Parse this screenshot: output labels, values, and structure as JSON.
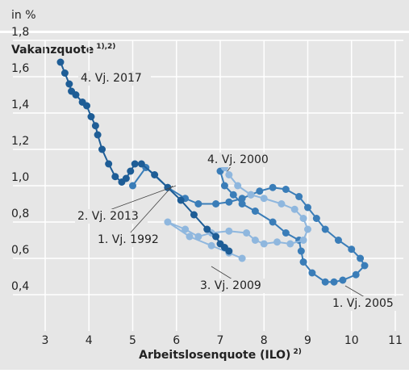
{
  "header": "in %",
  "chart_data": {
    "type": "line",
    "y_label": "Vakanzquote",
    "y_label_note": "1),2)",
    "x_label": "Arbeitslosenquote (ILO)",
    "x_label_note": "2)",
    "xlim": [
      3,
      11
    ],
    "xticks": [
      3,
      4,
      5,
      6,
      7,
      8,
      9,
      10,
      11
    ],
    "ylim": [
      0.2,
      1.8
    ],
    "yticks": [
      {
        "value": 0.4,
        "label": "0,4"
      },
      {
        "value": 0.6,
        "label": "0,6"
      },
      {
        "value": 0.8,
        "label": "0,8"
      },
      {
        "value": 1.0,
        "label": "1,0"
      },
      {
        "value": 1.2,
        "label": "1,2"
      },
      {
        "value": 1.4,
        "label": "1,4"
      },
      {
        "value": 1.6,
        "label": "1,6"
      },
      {
        "value": 1.8,
        "label": "1,8"
      }
    ],
    "grid": true,
    "series": [
      {
        "color": "#3a7db8",
        "x": [
          5.0,
          5.3,
          5.8,
          6.2,
          6.5,
          6.9,
          7.2,
          7.5,
          7.7,
          7.9,
          8.2,
          8.5,
          8.8,
          9.0,
          9.2,
          9.4,
          9.7,
          10.0,
          10.2,
          10.3,
          10.1,
          9.8,
          9.6,
          9.4,
          9.1,
          8.9,
          8.85,
          8.8,
          8.5,
          8.2,
          7.8,
          7.5,
          7.3,
          7.1,
          7.0
        ],
        "values": [
          1.0,
          1.1,
          0.99,
          0.93,
          0.9,
          0.9,
          0.91,
          0.93,
          0.95,
          0.97,
          0.99,
          0.98,
          0.94,
          0.88,
          0.82,
          0.76,
          0.7,
          0.65,
          0.6,
          0.56,
          0.51,
          0.48,
          0.47,
          0.47,
          0.52,
          0.58,
          0.64,
          0.7,
          0.74,
          0.8,
          0.86,
          0.9,
          0.95,
          1.0,
          1.08
        ]
      },
      {
        "color": "#8fb7de",
        "x": [
          7.1,
          7.2,
          7.4,
          7.7,
          8.0,
          8.4,
          8.7,
          8.9,
          9.0,
          8.9,
          8.6,
          8.3,
          8.0,
          7.8,
          7.6,
          7.2,
          6.8,
          6.5,
          6.2,
          5.8,
          6.3,
          6.8,
          7.2,
          7.5
        ],
        "values": [
          1.1,
          1.06,
          1.0,
          0.95,
          0.93,
          0.9,
          0.87,
          0.82,
          0.76,
          0.7,
          0.68,
          0.69,
          0.68,
          0.7,
          0.74,
          0.75,
          0.74,
          0.72,
          0.76,
          0.8,
          0.72,
          0.67,
          0.63,
          0.6
        ]
      },
      {
        "color": "#1e5d96",
        "x": [
          7.2,
          7.1,
          7.0,
          6.9,
          6.7,
          6.4,
          6.1,
          5.8,
          5.5,
          5.2,
          5.05,
          4.95,
          4.85,
          4.75,
          4.6,
          4.45,
          4.3,
          4.2,
          4.15,
          4.05,
          3.95,
          3.85,
          3.7,
          3.6,
          3.55,
          3.45,
          3.35
        ],
        "values": [
          0.64,
          0.66,
          0.68,
          0.72,
          0.76,
          0.84,
          0.92,
          0.99,
          1.06,
          1.12,
          1.12,
          1.08,
          1.04,
          1.02,
          1.05,
          1.12,
          1.2,
          1.28,
          1.33,
          1.38,
          1.44,
          1.46,
          1.5,
          1.52,
          1.56,
          1.62,
          1.68
        ]
      }
    ],
    "annotations": [
      "4. Vj. 2017",
      "4. Vj. 2000",
      "2. Vj. 2013",
      "1. Vj. 1992",
      "3. Vj. 2009",
      "1. Vj. 2005"
    ]
  }
}
